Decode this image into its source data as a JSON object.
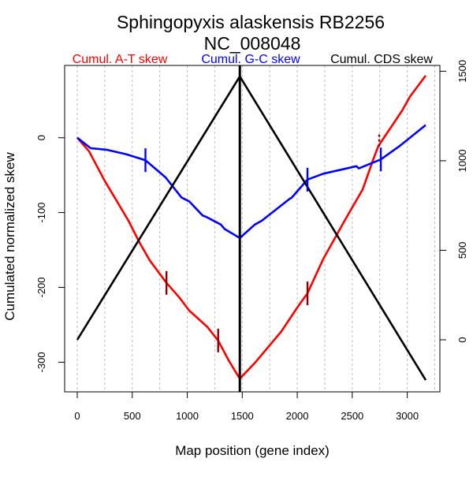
{
  "chart_data": {
    "type": "line",
    "title": "Sphingopyxis alaskensis RB2256",
    "subtitle": "NC_008048",
    "xlabel": "Map position (gene index)",
    "ylabel": "Cumulated normalized skew",
    "xlim": [
      -120,
      3320
    ],
    "ylim": [
      -340,
      95
    ],
    "ylim_right": [
      -290,
      1520
    ],
    "x_ticks": [
      0,
      500,
      1000,
      1500,
      2000,
      2500,
      3000
    ],
    "y_ticks": [
      0,
      -100,
      -200,
      -300
    ],
    "y_ticks_right": [
      0,
      500,
      1000,
      1500
    ],
    "grid_x": [
      0,
      250,
      500,
      750,
      1000,
      1250,
      1500,
      1750,
      2000,
      2250,
      2500,
      2750,
      3000,
      3250
    ],
    "grid": "vertical dotted",
    "legend": [
      {
        "label": "Cumul. A-T skew",
        "color": "#ff0000"
      },
      {
        "label": "Cumul. G-C skew",
        "color": "#0000ff"
      },
      {
        "label": "Cumul. CDS skew",
        "color": "#000000"
      }
    ],
    "series": [
      {
        "name": "Cumul. A-T skew",
        "axis": "left",
        "color": "#ff0000",
        "x": [
          0,
          107,
          251,
          337,
          466,
          566,
          659,
          811,
          925,
          1018,
          1184,
          1281,
          1378,
          1478,
          1615,
          1855,
          2000,
          2093,
          2237,
          2351,
          2430,
          2595,
          2688,
          2738,
          2953,
          3025,
          3168
        ],
        "y": [
          0,
          -18,
          -58,
          -79,
          -111,
          -140,
          -164,
          -194,
          -213,
          -231,
          -253,
          -271,
          -298,
          -322,
          -301,
          -259,
          -227,
          -208,
          -162,
          -132,
          -111,
          -69,
          -30,
          -11,
          36,
          55,
          83
        ]
      },
      {
        "name": "Cumul. G-C skew",
        "axis": "left",
        "color": "#0000ff",
        "x": [
          0,
          122,
          265,
          445,
          620,
          803,
          948,
          1018,
          1140,
          1176,
          1305,
          1340,
          1478,
          1615,
          1677,
          1928,
          1950,
          2093,
          2237,
          2538,
          2560,
          2760,
          2932,
          3168
        ],
        "y": [
          0,
          -14,
          -16,
          -22,
          -30,
          -53,
          -80,
          -85,
          -104,
          -106,
          -116,
          -122,
          -134,
          -116,
          -111,
          -82,
          -80,
          -56,
          -48,
          -38,
          -41,
          -29,
          -11,
          17
        ]
      },
      {
        "name": "Cumul. CDS skew",
        "axis": "right",
        "color": "#000000",
        "x": [
          0,
          1478,
          3168
        ],
        "y": [
          0,
          1471,
          -225
        ]
      }
    ],
    "origin_terminus_line": {
      "x": 1478,
      "color": "#000000"
    },
    "markers": [
      {
        "series": "Cumul. A-T skew",
        "x": 811,
        "y": -194,
        "color": "#8b0000"
      },
      {
        "series": "Cumul. A-T skew",
        "x": 1281,
        "y": -271,
        "color": "#8b0000"
      },
      {
        "series": "Cumul. A-T skew",
        "x": 2093,
        "y": -208,
        "color": "#8b0000"
      },
      {
        "series": "Cumul. A-T skew",
        "x": 2745,
        "y": -2,
        "color": "#8b0000",
        "dashed": true
      },
      {
        "series": "Cumul. G-C skew",
        "x": 620,
        "y": -30,
        "color": "#0000ff"
      },
      {
        "series": "Cumul. G-C skew",
        "x": 2093,
        "y": -56,
        "color": "#0000ff"
      },
      {
        "series": "Cumul. G-C skew",
        "x": 2760,
        "y": -29,
        "color": "#0000ff"
      }
    ]
  }
}
